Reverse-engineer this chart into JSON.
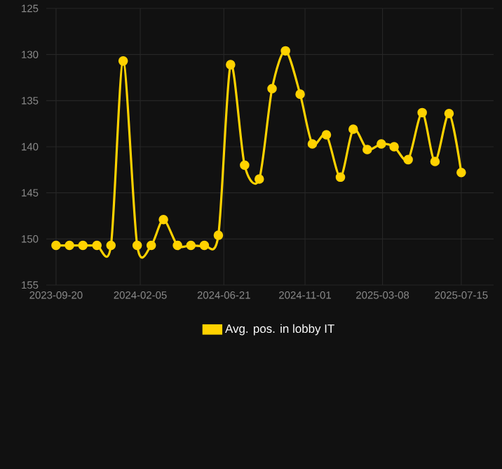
{
  "chart_data": {
    "type": "line",
    "x": [
      "2023-09-20",
      "2023-10-12",
      "2023-11-03",
      "2023-11-26",
      "2023-12-19",
      "2024-01-08",
      "2024-01-31",
      "2024-02-23",
      "2024-03-14",
      "2024-04-06",
      "2024-04-28",
      "2024-05-20",
      "2024-06-12",
      "2024-07-02",
      "2024-07-25",
      "2024-08-18",
      "2024-09-08",
      "2024-09-30",
      "2024-10-24",
      "2024-11-13",
      "2024-12-06",
      "2024-12-29",
      "2025-01-19",
      "2025-02-11",
      "2025-03-06",
      "2025-03-27",
      "2025-04-19",
      "2025-05-12",
      "2025-06-02",
      "2025-06-25",
      "2025-07-15"
    ],
    "series": [
      {
        "name": "Avg. pos. in lobby IT",
        "color": "#ffd200",
        "values": [
          150.7,
          150.7,
          150.7,
          150.7,
          150.7,
          130.7,
          150.7,
          150.7,
          147.9,
          150.7,
          150.7,
          150.7,
          149.6,
          131.1,
          142.0,
          143.5,
          133.7,
          129.6,
          134.3,
          139.7,
          138.7,
          143.3,
          138.1,
          140.3,
          139.7,
          140.0,
          141.4,
          136.3,
          141.6,
          136.4,
          142.8
        ]
      }
    ],
    "xlim": [
      "2023-09-04",
      "2025-09-06"
    ],
    "xticks": [
      "2023-09-20",
      "2024-02-05",
      "2024-06-21",
      "2024-11-01",
      "2025-03-08",
      "2025-07-15"
    ],
    "ylim": [
      155,
      125
    ],
    "yticks": [
      125,
      130,
      135,
      140,
      145,
      150,
      155
    ],
    "grid": true,
    "legend": "bottom",
    "marker": "circle",
    "line_style": "solid"
  }
}
